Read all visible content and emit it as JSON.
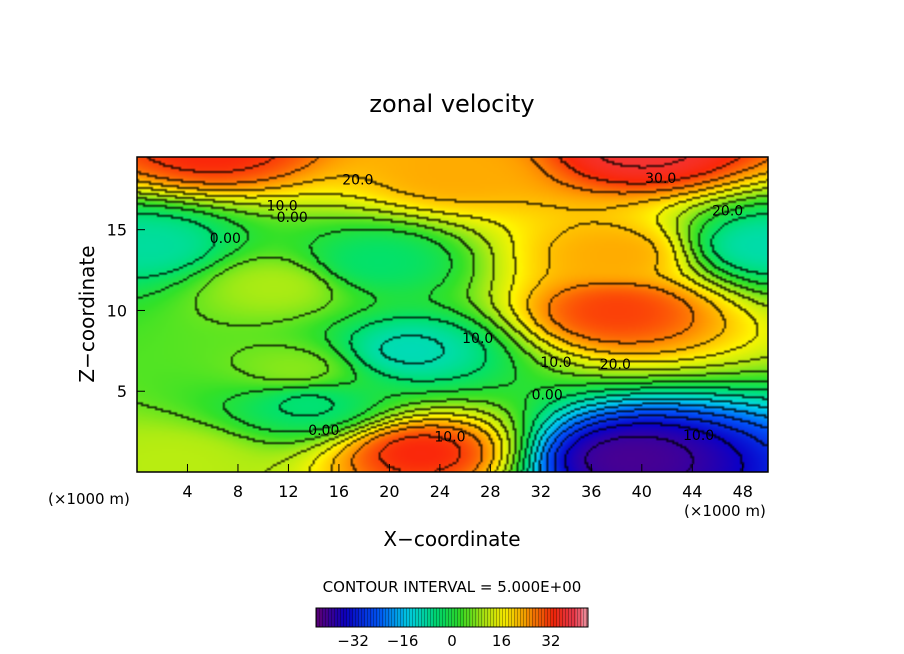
{
  "chart_data": {
    "type": "heatmap",
    "title": "zonal velocity",
    "xlabel": "X−coordinate",
    "ylabel": "Z−coordinate",
    "x_unit_left": "(×1000 m)",
    "x_unit_right": "(×1000 m)",
    "xlim": [
      0,
      50
    ],
    "ylim": [
      0,
      19.5
    ],
    "x_ticks": [
      4,
      8,
      12,
      16,
      20,
      24,
      28,
      32,
      36,
      40,
      44,
      48
    ],
    "y_ticks": [
      5,
      10,
      15
    ],
    "contour_interval_text": "CONTOUR INTERVAL = 5.000E+00",
    "colorbar": {
      "min": -44,
      "max": 44,
      "ticks": [
        -32,
        -16,
        0,
        16,
        32
      ],
      "tick_labels": [
        "−32",
        "−16",
        "0",
        "16",
        "32"
      ]
    },
    "contour_labels": [
      {
        "text": "20.0",
        "x": 17.5,
        "y": 18.1
      },
      {
        "text": "30.0",
        "x": 41.5,
        "y": 18.2
      },
      {
        "text": "10.0",
        "x": 11.5,
        "y": 16.5
      },
      {
        "text": "0.00",
        "x": 12.3,
        "y": 15.8
      },
      {
        "text": "20.0",
        "x": 46.8,
        "y": 16.2
      },
      {
        "text": "0.00",
        "x": 7.0,
        "y": 14.5
      },
      {
        "text": "10.0",
        "x": 27.0,
        "y": 8.3
      },
      {
        "text": "10.0",
        "x": 33.2,
        "y": 6.8
      },
      {
        "text": "20.0",
        "x": 37.9,
        "y": 6.7
      },
      {
        "text": "0.00",
        "x": 32.5,
        "y": 4.8
      },
      {
        "text": "0.00",
        "x": 14.8,
        "y": 2.6
      },
      {
        "text": "10.0",
        "x": 24.8,
        "y": 2.2
      },
      {
        "text": "10.0",
        "x": 44.5,
        "y": 2.3
      }
    ],
    "field_centers": [
      {
        "label": "jet core top right",
        "x": 40,
        "y": 20,
        "value": 36
      },
      {
        "label": "jet top left",
        "x": 6,
        "y": 20,
        "value": 32
      },
      {
        "label": "upper band",
        "x": 25,
        "y": 18.5,
        "value": 22
      },
      {
        "label": "warm core",
        "x": 38,
        "y": 10,
        "value": 30
      },
      {
        "label": "warm lobe upper",
        "x": 38,
        "y": 13.5,
        "value": 22
      },
      {
        "label": "cold core center",
        "x": 21.5,
        "y": 7.5,
        "value": -11
      },
      {
        "label": "cold extension",
        "x": 19,
        "y": 13,
        "value": -5
      },
      {
        "label": "deep cold bottom",
        "x": 39,
        "y": 0.8,
        "value": -42
      },
      {
        "label": "bottom hot blob",
        "x": 22.5,
        "y": 1.2,
        "value": 32
      },
      {
        "label": "left cold patch",
        "x": 1,
        "y": 14,
        "value": -9
      },
      {
        "label": "right cold patch",
        "x": 49.5,
        "y": 14,
        "value": -10
      },
      {
        "label": "left green bump",
        "x": 11,
        "y": 11.5,
        "value": 9
      },
      {
        "label": "small warm spot",
        "x": 12.5,
        "y": 6.3,
        "value": 7
      },
      {
        "label": "small cold spot",
        "x": 13.5,
        "y": 4.2,
        "value": -6
      },
      {
        "label": "bottom left warm",
        "x": 3,
        "y": 0.6,
        "value": 10
      }
    ]
  }
}
